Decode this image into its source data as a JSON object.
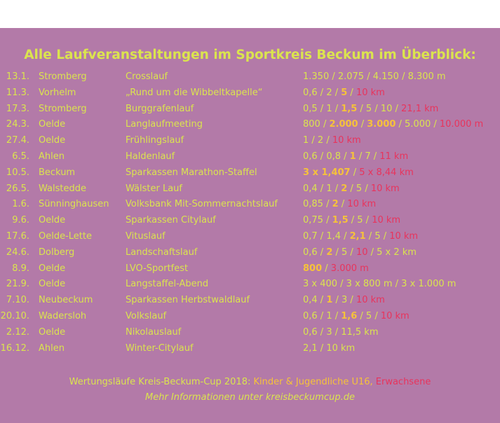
{
  "title": "Alle Laufveranstaltungen im Sportkreis Beckum im Überblick:",
  "colors": {
    "background": "#b37aa8",
    "text": "#dbe44e",
    "kids": "#f6c23a",
    "adults": "#e8345c"
  },
  "events": [
    {
      "date": "13.1.",
      "place": "Stromberg",
      "event": "Crosslauf",
      "distances": [
        {
          "t": "1.350 / 2.075 / 4.150 / 8.300 m",
          "c": "y"
        }
      ]
    },
    {
      "date": "11.3.",
      "place": "Vorhelm",
      "event": "„Rund um die Wibbeltkapelle“",
      "distances": [
        {
          "t": "0,6 / 2 / ",
          "c": "y"
        },
        {
          "t": "5",
          "c": "o"
        },
        {
          "t": " / ",
          "c": "y"
        },
        {
          "t": "10 km",
          "c": "r"
        }
      ]
    },
    {
      "date": "17.3.",
      "place": "Stromberg",
      "event": "Burggrafenlauf",
      "distances": [
        {
          "t": "0,5 / 1 / ",
          "c": "y"
        },
        {
          "t": "1,5",
          "c": "o"
        },
        {
          "t": " / 5 / 10 / ",
          "c": "y"
        },
        {
          "t": "21,1 km",
          "c": "r"
        }
      ]
    },
    {
      "date": "24.3.",
      "place": "Oelde",
      "event": "Langlaufmeeting",
      "distances": [
        {
          "t": "800 / ",
          "c": "y"
        },
        {
          "t": "2.000",
          "c": "o"
        },
        {
          "t": " / ",
          "c": "y"
        },
        {
          "t": "3.000",
          "c": "o"
        },
        {
          "t": " / 5.000 / ",
          "c": "y"
        },
        {
          "t": "10.000 m",
          "c": "r"
        }
      ]
    },
    {
      "date": "27.4.",
      "place": "Oelde",
      "event": "Frühlingslauf",
      "distances": [
        {
          "t": "1 / 2 / ",
          "c": "y"
        },
        {
          "t": "10 km",
          "c": "r"
        }
      ]
    },
    {
      "date": "6.5.",
      "place": "Ahlen",
      "event": "Haldenlauf",
      "distances": [
        {
          "t": "0,6 / 0,8 / ",
          "c": "y"
        },
        {
          "t": "1",
          "c": "o"
        },
        {
          "t": " / 7 / ",
          "c": "y"
        },
        {
          "t": "11 km",
          "c": "r"
        }
      ]
    },
    {
      "date": "10.5.",
      "place": "Beckum",
      "event": "Sparkassen Marathon-Staffel",
      "distances": [
        {
          "t": "3 x 1,407",
          "c": "o"
        },
        {
          "t": " / ",
          "c": "y"
        },
        {
          "t": "5 x 8,44 km",
          "c": "r"
        }
      ]
    },
    {
      "date": "26.5.",
      "place": "Walstedde",
      "event": "Wälster Lauf",
      "distances": [
        {
          "t": "0,4 / 1 / ",
          "c": "y"
        },
        {
          "t": "2",
          "c": "o"
        },
        {
          "t": " / 5 / ",
          "c": "y"
        },
        {
          "t": "10 km",
          "c": "r"
        }
      ]
    },
    {
      "date": "1.6.",
      "place": "Sünninghausen",
      "event": "Volksbank Mit-Sommernachtslauf",
      "distances": [
        {
          "t": "0,85 / ",
          "c": "y"
        },
        {
          "t": "2",
          "c": "o"
        },
        {
          "t": " / ",
          "c": "y"
        },
        {
          "t": "10 km",
          "c": "r"
        }
      ]
    },
    {
      "date": "9.6.",
      "place": "Oelde",
      "event": "Sparkassen Citylauf",
      "distances": [
        {
          "t": "0,75 / ",
          "c": "y"
        },
        {
          "t": "1,5",
          "c": "o"
        },
        {
          "t": " / 5 / ",
          "c": "y"
        },
        {
          "t": "10 km",
          "c": "r"
        }
      ]
    },
    {
      "date": "17.6.",
      "place": "Oelde-Lette",
      "event": "Vituslauf",
      "distances": [
        {
          "t": "0,7 / 1,4 / ",
          "c": "y"
        },
        {
          "t": "2,1",
          "c": "o"
        },
        {
          "t": " / 5 / ",
          "c": "y"
        },
        {
          "t": "10 km",
          "c": "r"
        }
      ]
    },
    {
      "date": "24.6.",
      "place": "Dolberg",
      "event": "Landschaftslauf",
      "distances": [
        {
          "t": "0,6 / ",
          "c": "y"
        },
        {
          "t": "2",
          "c": "o"
        },
        {
          "t": " / 5 / ",
          "c": "y"
        },
        {
          "t": "10",
          "c": "r"
        },
        {
          "t": " / 5 x 2 km",
          "c": "y"
        }
      ]
    },
    {
      "date": "8.9.",
      "place": "Oelde",
      "event": "LVO-Sportfest",
      "distances": [
        {
          "t": "800",
          "c": "o"
        },
        {
          "t": " / ",
          "c": "y"
        },
        {
          "t": "3.000 m",
          "c": "r"
        }
      ]
    },
    {
      "date": "21.9.",
      "place": "Oelde",
      "event": "Langstaffel-Abend",
      "distances": [
        {
          "t": "3 x 400 / 3 x 800 m / 3 x 1.000 m",
          "c": "y"
        }
      ]
    },
    {
      "date": "7.10.",
      "place": "Neubeckum",
      "event": "Sparkassen Herbstwaldlauf",
      "distances": [
        {
          "t": "0,4 / ",
          "c": "y"
        },
        {
          "t": "1",
          "c": "o"
        },
        {
          "t": " / 3 / ",
          "c": "y"
        },
        {
          "t": "10 km",
          "c": "r"
        }
      ]
    },
    {
      "date": "20.10.",
      "place": "Wadersloh",
      "event": "Volkslauf",
      "distances": [
        {
          "t": "0,6 / 1 / ",
          "c": "y"
        },
        {
          "t": "1,6",
          "c": "o"
        },
        {
          "t": " / 5 / ",
          "c": "y"
        },
        {
          "t": "10 km",
          "c": "r"
        }
      ]
    },
    {
      "date": "2.12.",
      "place": "Oelde",
      "event": "Nikolauslauf",
      "distances": [
        {
          "t": "0,6 / 3 / 11,5 km",
          "c": "y"
        }
      ]
    },
    {
      "date": "16.12.",
      "place": "Ahlen",
      "event": "Winter-Citylauf",
      "distances": [
        {
          "t": "2,1 / 10 km",
          "c": "y"
        }
      ]
    }
  ],
  "footer": {
    "line1_prefix": "Wertungsläufe Kreis-Beckum-Cup 2018: ",
    "line1_kids": "Kinder & Jugendliche U16, ",
    "line1_adults": "Erwachsene",
    "line2": "Mehr Informationen unter kreisbeckumcup.de"
  }
}
